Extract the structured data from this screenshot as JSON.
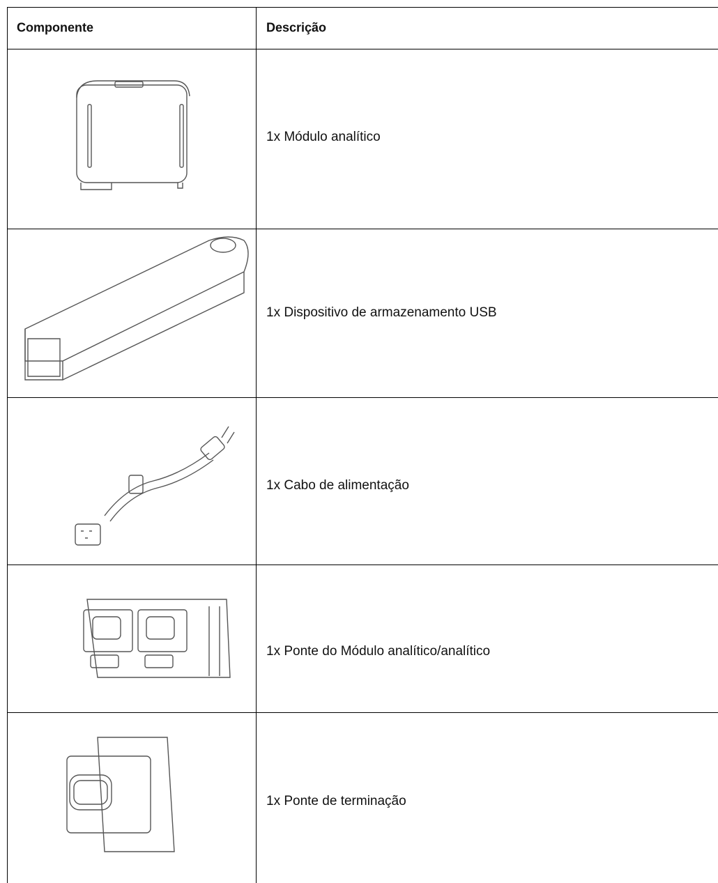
{
  "table": {
    "header": [
      "Componente",
      "Descrição"
    ],
    "rows": [
      "1x Módulo analítico",
      "1x Dispositivo de armazenamento USB",
      "1x Cabo de alimentação",
      "1x Ponte do Módulo analítico/analítico",
      "1x Ponte de terminação"
    ]
  }
}
